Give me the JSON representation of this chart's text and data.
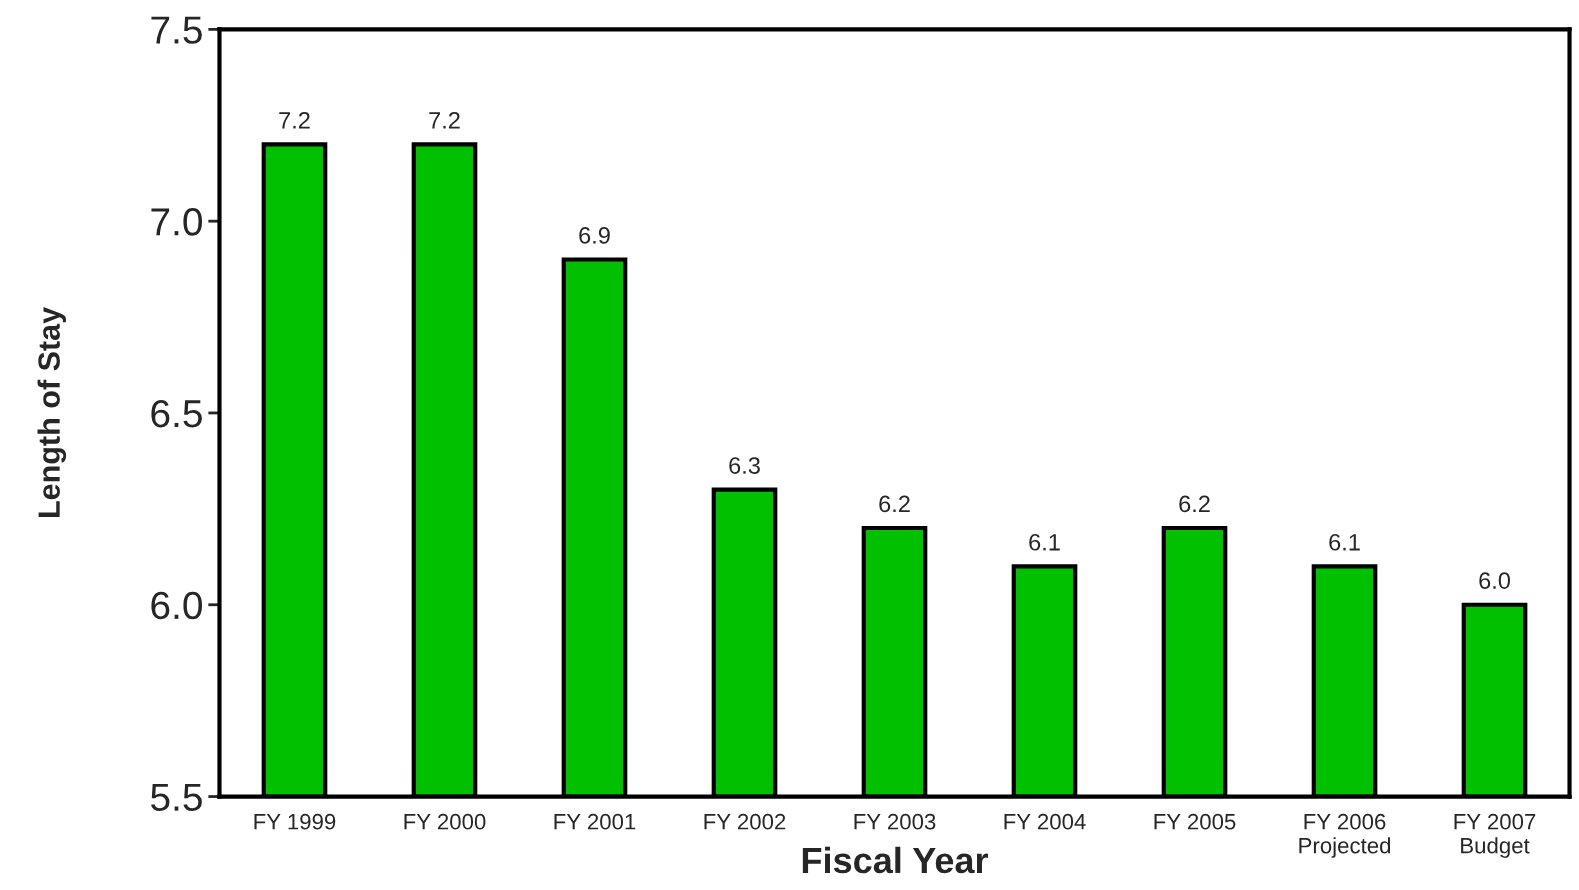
{
  "chart_data": {
    "type": "bar",
    "xlabel": "Fiscal Year",
    "ylabel": "Length of Stay",
    "categories": [
      "FY 1999",
      "FY 2000",
      "FY 2001",
      "FY 2002",
      "FY 2003",
      "FY 2004",
      "FY 2005",
      "FY 2006\nProjected",
      "FY 2007\nBudget"
    ],
    "values": [
      7.2,
      7.2,
      6.9,
      6.3,
      6.2,
      6.1,
      6.2,
      6.1,
      6.0
    ],
    "color": "#00c000",
    "ylim": [
      5.5,
      7.5
    ],
    "yticks": [
      {
        "value": 5.5,
        "label": "5.5"
      },
      {
        "value": 6.0,
        "label": "6.0"
      },
      {
        "value": 6.5,
        "label": "6.5"
      },
      {
        "value": 7.0,
        "label": "7.0"
      },
      {
        "value": 7.5,
        "label": "7.5"
      }
    ],
    "value_labels": [
      "7.2",
      "7.2",
      "6.9",
      "6.3",
      "6.2",
      "6.1",
      "6.2",
      "6.1",
      "6.0"
    ],
    "grid": false,
    "legend": false
  }
}
